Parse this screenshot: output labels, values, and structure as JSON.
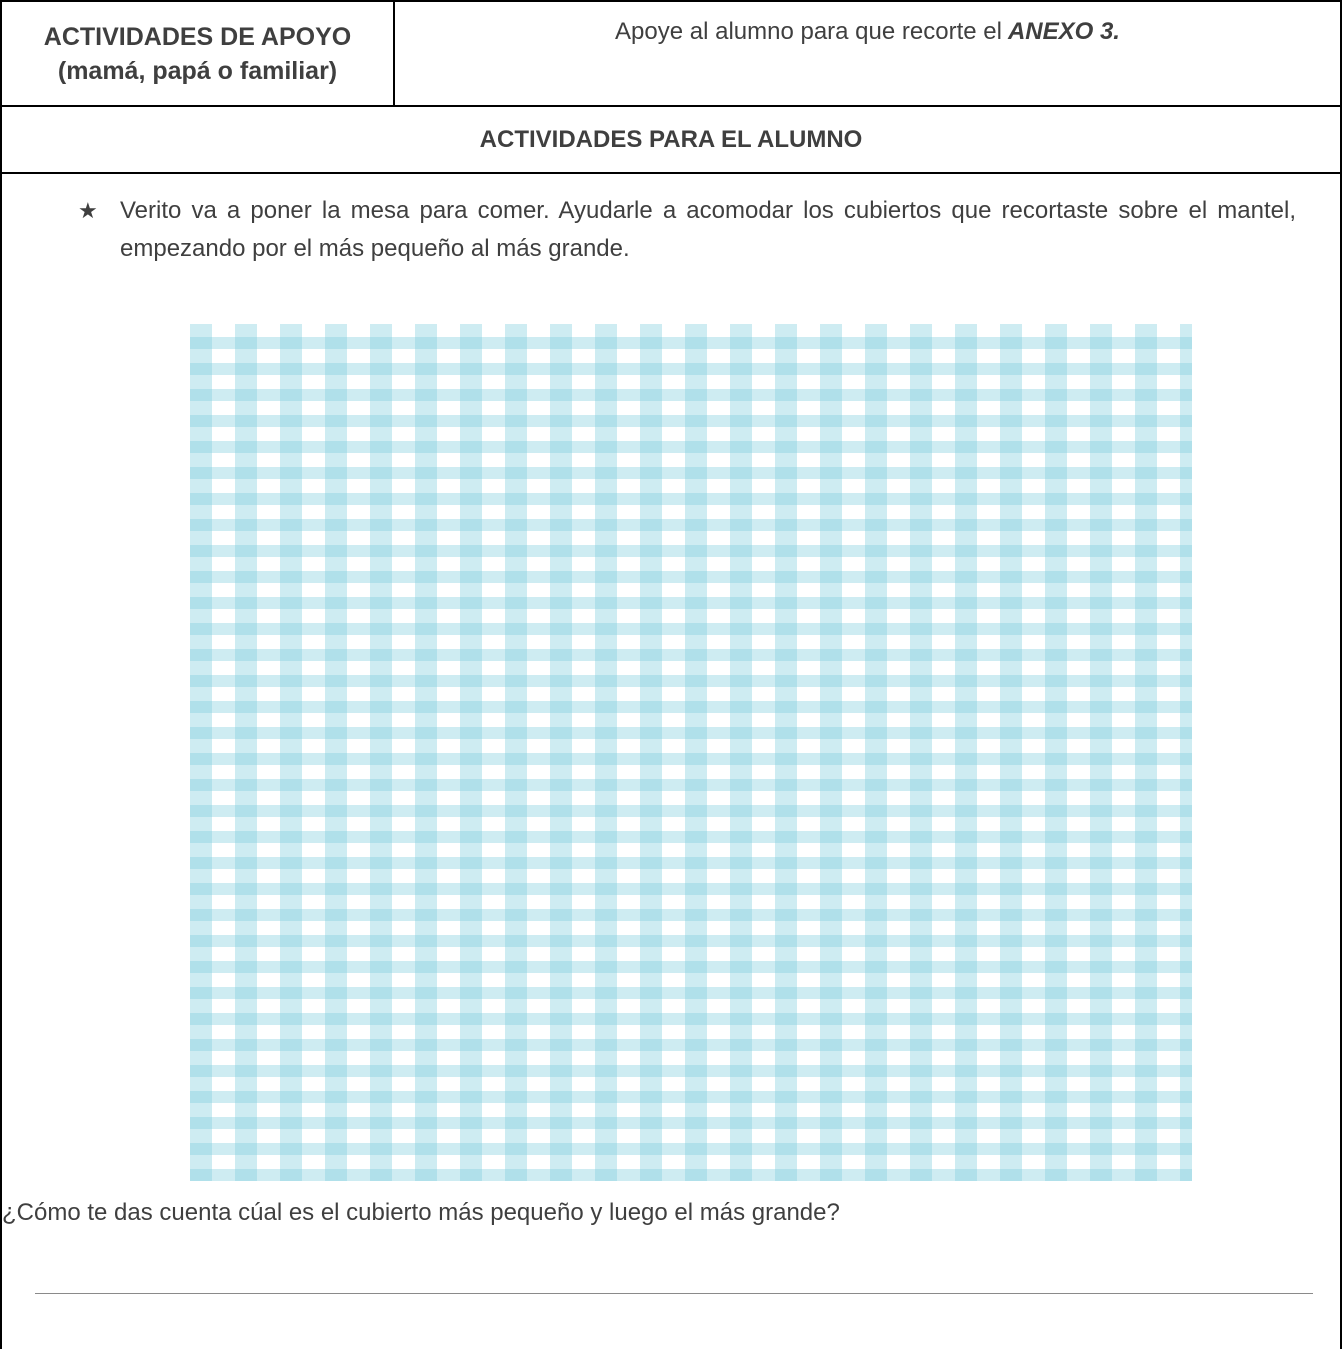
{
  "support": {
    "label_line1": "ACTIVIDADES DE APOYO",
    "label_line2": "(mamá, papá o familiar)",
    "text": "Apoye al alumno para que recorte el",
    "annex": "ANEXO 3."
  },
  "student": {
    "section_title": "ACTIVIDADES PARA EL ALUMNO",
    "bullet_icon": "star-icon",
    "instruction": "Verito va a poner la mesa para comer. Ayudarle a  acomodar los cubiertos que recortaste sobre el mantel, empezando por el más pequeño al más grande.",
    "tablecloth_colors": [
      "#7fcdde",
      "#ffffff"
    ],
    "question": "¿Cómo te das cuenta cúal es el cubierto más pequeño y luego el más grande?"
  }
}
